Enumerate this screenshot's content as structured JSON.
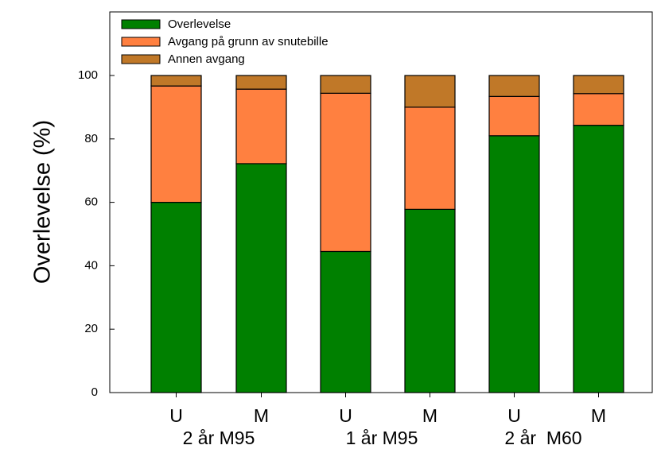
{
  "chart_data": {
    "type": "bar",
    "stacked": true,
    "categories": [
      "U",
      "M",
      "U",
      "M",
      "U",
      "M"
    ],
    "group_labels": [
      "2 år M95",
      "1 år M95",
      "2 år  M60"
    ],
    "ylabel": "Overlevelse (%)",
    "xlabel": "",
    "ylim": [
      0,
      120
    ],
    "yticks": [
      0,
      20,
      40,
      60,
      80,
      100
    ],
    "grid": false,
    "legend_position": "top-left",
    "series": [
      {
        "name": "Overlevelse",
        "color": "#008000",
        "values": [
          60,
          72.2,
          44.5,
          57.8,
          81,
          84.3
        ]
      },
      {
        "name": "Avgang på grunn av snutebille",
        "color": "#ff8040",
        "values": [
          36.7,
          23.5,
          49.9,
          32.2,
          12.4,
          10.0
        ]
      },
      {
        "name": "Annen avgang",
        "color": "#c07828",
        "values": [
          3.3,
          4.3,
          5.6,
          10.0,
          6.6,
          5.7
        ]
      }
    ]
  }
}
